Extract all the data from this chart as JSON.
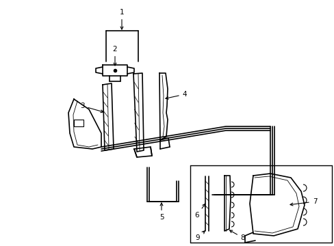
{
  "bg_color": "#ffffff",
  "line_color": "#000000",
  "fig_width": 4.89,
  "fig_height": 3.6,
  "dpi": 100,
  "lw_main": 1.2,
  "lw_thin": 0.6,
  "lw_heavy": 1.8,
  "font_size": 7.5
}
